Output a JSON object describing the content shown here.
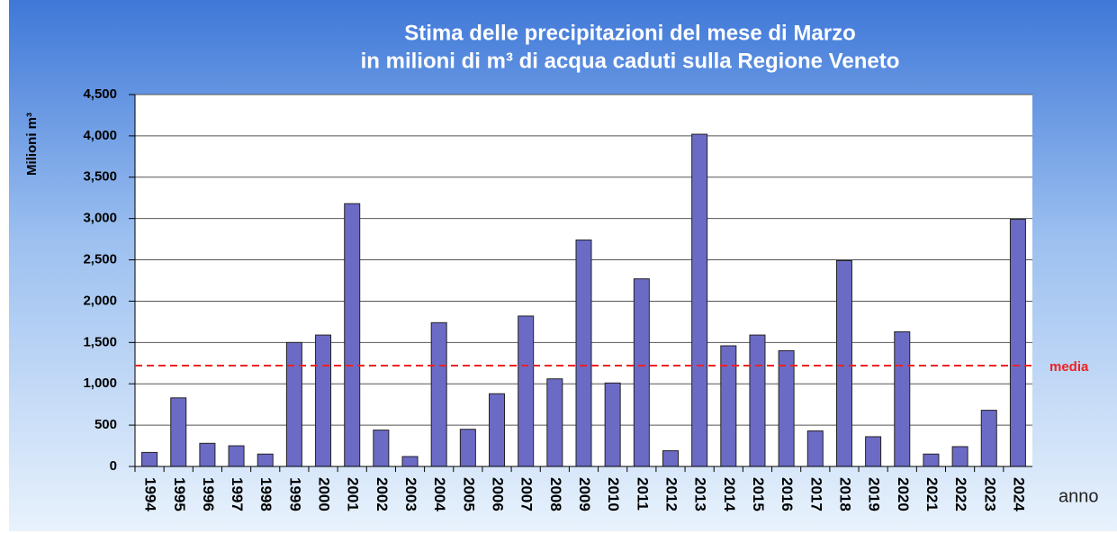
{
  "chart_data": {
    "type": "bar",
    "title": "Stima delle precipitazioni del  mese di Marzo",
    "subtitle": "in  milioni di m³ di acqua caduti sulla  Regione Veneto",
    "y_label": "Milioni  m³",
    "x_label": "anno",
    "categories": [
      "1994",
      "1995",
      "1996",
      "1997",
      "1998",
      "1999",
      "2000",
      "2001",
      "2002",
      "2003",
      "2004",
      "2005",
      "2006",
      "2007",
      "2008",
      "2009",
      "2010",
      "2011",
      "2012",
      "2013",
      "2014",
      "2015",
      "2016",
      "2017",
      "2018",
      "2019",
      "2020",
      "2021",
      "2022",
      "2023",
      "2024"
    ],
    "values": [
      170,
      830,
      280,
      250,
      150,
      1500,
      1590,
      3180,
      440,
      120,
      1740,
      450,
      880,
      1820,
      1060,
      2740,
      1010,
      2270,
      190,
      4020,
      1460,
      1590,
      1400,
      430,
      2490,
      360,
      1630,
      150,
      240,
      680,
      2990
    ],
    "color": "#6b6bc6",
    "ylim": [
      0,
      4500
    ],
    "yticks": [
      0,
      500,
      {
        "value": 1000,
        "label": "1,000"
      },
      {
        "value": 1500,
        "label": "1,500"
      },
      {
        "value": 2000,
        "label": "2,000"
      },
      {
        "value": 2500,
        "label": "2,500"
      },
      {
        "value": 3000,
        "label": "3,000"
      },
      {
        "value": 3500,
        "label": "3,500"
      },
      {
        "value": 4000,
        "label": "4,000"
      },
      {
        "value": 4500,
        "label": "4,500"
      }
    ],
    "grid": true,
    "mean_line": {
      "value": 1220,
      "label": "media",
      "color": "#ee2222"
    }
  }
}
